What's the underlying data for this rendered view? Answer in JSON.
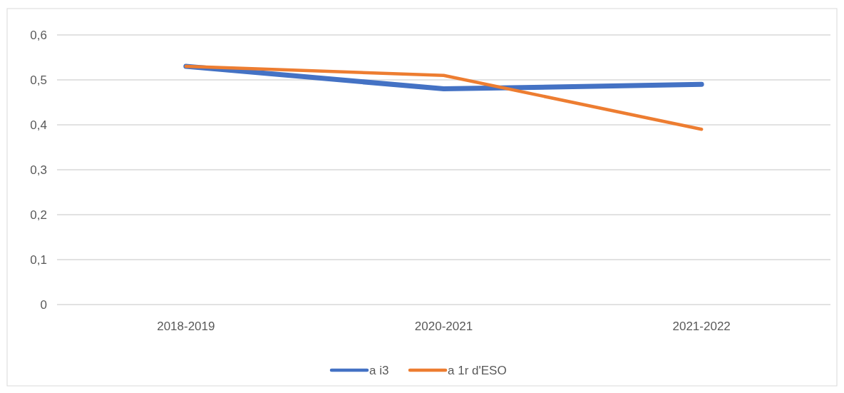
{
  "chart_data": {
    "type": "line",
    "categories": [
      "2018-2019",
      "2020-2021",
      "2021-2022"
    ],
    "series": [
      {
        "name": "a i3",
        "color": "#4472c4",
        "values": [
          0.53,
          0.48,
          0.49
        ]
      },
      {
        "name": "a 1r d'ESO",
        "color": "#ed7d31",
        "values": [
          0.53,
          0.51,
          0.39
        ]
      }
    ],
    "ylim": [
      0,
      0.6
    ],
    "yticks": [
      {
        "value": 0,
        "label": "0"
      },
      {
        "value": 0.1,
        "label": "0,1"
      },
      {
        "value": 0.2,
        "label": "0,2"
      },
      {
        "value": 0.3,
        "label": "0,3"
      },
      {
        "value": 0.4,
        "label": "0,4"
      },
      {
        "value": 0.5,
        "label": "0,5"
      },
      {
        "value": 0.6,
        "label": "0,6"
      }
    ],
    "grid": "y",
    "legend": "bottom",
    "marker": "none",
    "line_style": "solid"
  }
}
